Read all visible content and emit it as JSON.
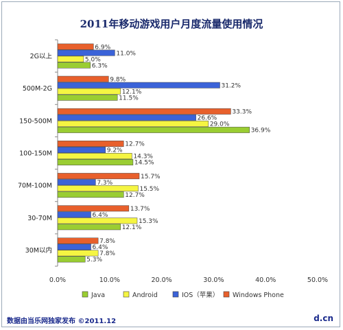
{
  "chart_data": {
    "type": "bar",
    "orientation": "horizontal",
    "title": "2011年移动游戏用户月度流量使用情况",
    "categories": [
      "2G以上",
      "500M-2G",
      "150-500M",
      "100-150M",
      "70M-100M",
      "30-70M",
      "30M以内"
    ],
    "series": [
      {
        "name": "Windows Phone",
        "color": "#e8602c",
        "values": [
          6.9,
          9.8,
          33.3,
          12.7,
          15.7,
          13.7,
          7.8
        ],
        "labels": [
          "6.9%",
          "9.8%",
          "33.3%",
          "12.7%",
          "15.7%",
          "13.7%",
          "7.8%"
        ]
      },
      {
        "name": "IOS（苹果）",
        "color": "#3b63d8",
        "values": [
          11.0,
          31.2,
          26.6,
          9.2,
          7.3,
          6.4,
          6.4
        ],
        "labels": [
          "11.0%",
          "31.2%",
          "26.6%",
          "9.2%",
          "7.3%",
          "6.4%",
          "6.4%"
        ]
      },
      {
        "name": "Android",
        "color": "#f5f542",
        "values": [
          5.0,
          12.1,
          29.0,
          14.3,
          15.5,
          15.3,
          7.8
        ],
        "labels": [
          "5.0%",
          "12.1%",
          "29.0%",
          "14.3%",
          "15.5%",
          "15.3%",
          "7.8%"
        ]
      },
      {
        "name": "Java",
        "color": "#9acd32",
        "values": [
          6.3,
          11.5,
          36.9,
          14.5,
          12.7,
          12.1,
          5.3
        ],
        "labels": [
          "6.3%",
          "11.5%",
          "36.9%",
          "14.5%",
          "12.7%",
          "12.1%",
          "5.3%"
        ]
      }
    ],
    "xlim": [
      0,
      50
    ],
    "xticks": [
      "0.0%",
      "10.0%",
      "20.0%",
      "30.0%",
      "40.0%",
      "50.0%"
    ],
    "legend_order": [
      "Java",
      "Android",
      "IOS（苹果）",
      "Windows Phone"
    ],
    "legend_position": "bottom",
    "grid": false
  },
  "footer": {
    "source": "数据由当乐网独家发布 ©2011.12",
    "logo": "d.cn"
  }
}
